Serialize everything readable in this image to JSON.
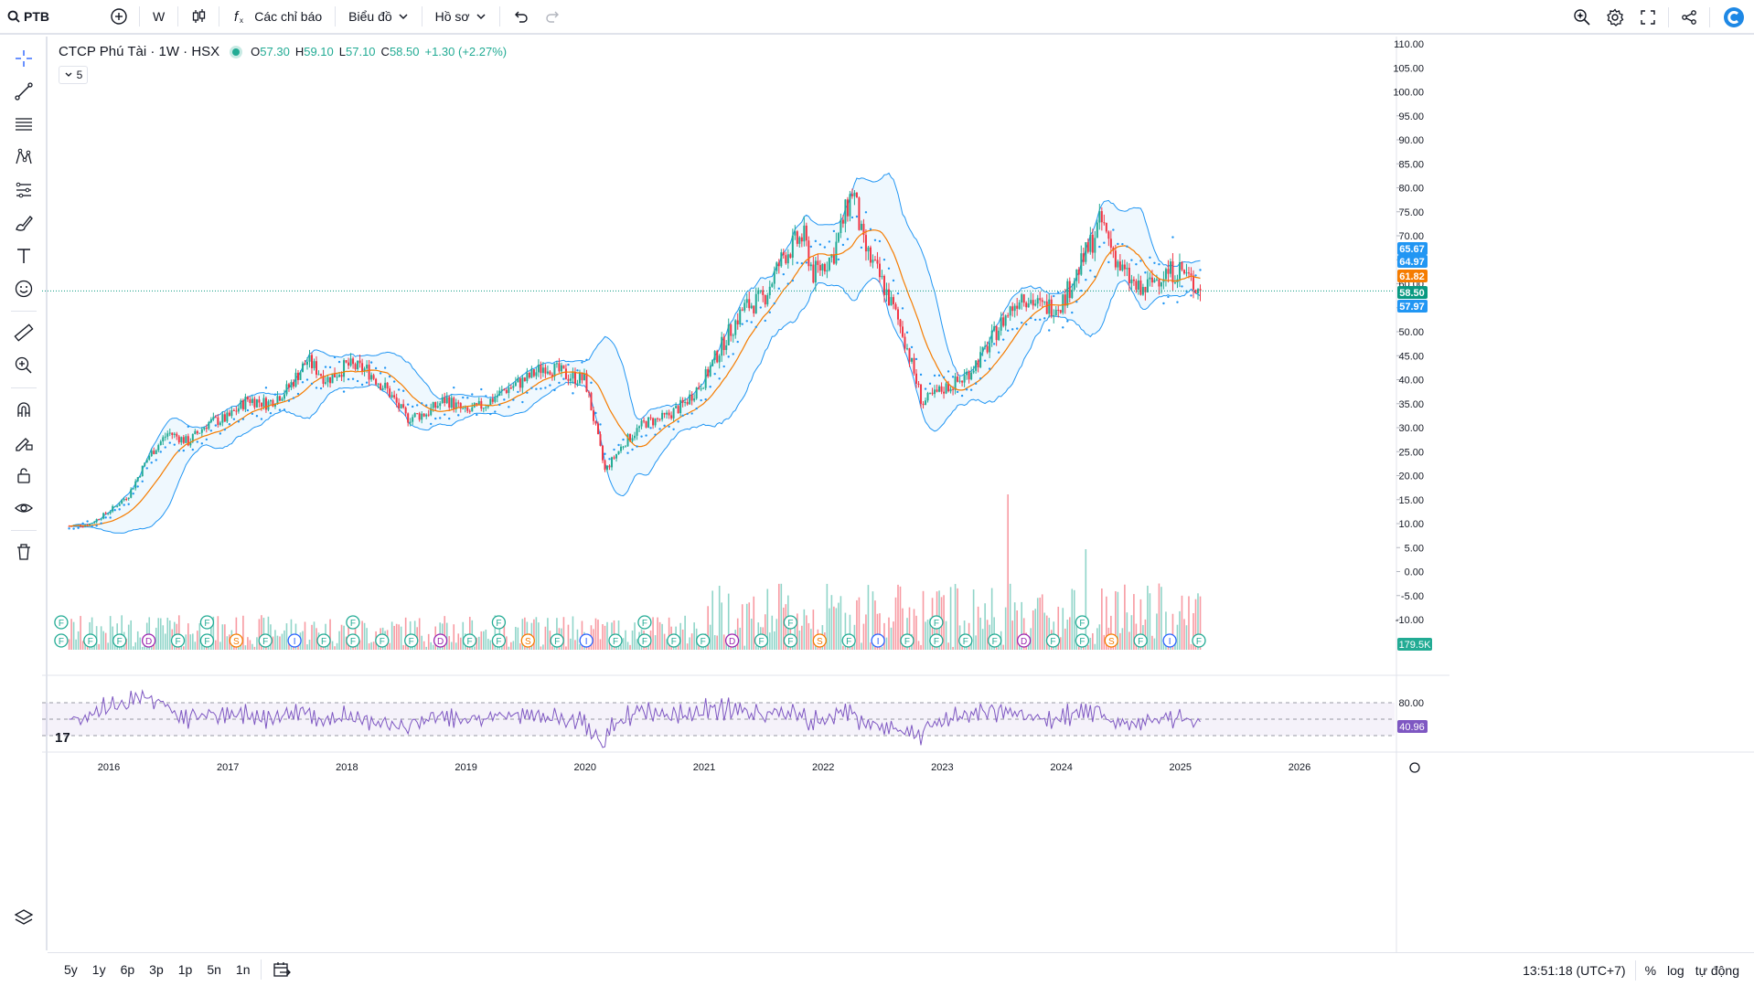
{
  "toolbar": {
    "symbol": "PTB",
    "interval": "W",
    "indicators_label": "Các chỉ báo",
    "chart_label": "Biểu đồ",
    "profile_label": "Hồ sơ"
  },
  "legend": {
    "title": "CTCP Phú Tài · 1W · HSX",
    "o_label": "O",
    "o": "57.30",
    "h_label": "H",
    "h": "59.10",
    "l_label": "L",
    "l": "57.10",
    "c_label": "C",
    "c": "58.50",
    "change": "+1.30 (+2.27%)",
    "collapse": "5"
  },
  "price_tags": [
    {
      "text": "65.67",
      "color": "#2196f3"
    },
    {
      "text": "64.97",
      "color": "#2196f3"
    },
    {
      "text": "61.82",
      "color": "#f57c00"
    },
    {
      "text": "58.50",
      "color": "#089981"
    },
    {
      "text": "57.97",
      "color": "#2196f3"
    }
  ],
  "volume_tag": "179.5K",
  "rsi_tag": "40.96",
  "bottom": {
    "ranges": [
      "5y",
      "1y",
      "6p",
      "3p",
      "1p",
      "5n",
      "1n"
    ],
    "time": "13:51:18 (UTC+7)",
    "percent": "%",
    "log": "log",
    "auto": "tự động"
  },
  "colors": {
    "up": "#22ab94",
    "down": "#f23645",
    "band": "#2196f3",
    "ma": "#f57c00",
    "rsi": "#7e57c2"
  },
  "chart_data": {
    "type": "candlestick",
    "y_axis_ticks": [
      "110.00",
      "105.00",
      "100.00",
      "95.00",
      "90.00",
      "85.00",
      "80.00",
      "75.00",
      "70.00",
      "65.00",
      "60.00",
      "55.00",
      "50.00",
      "45.00",
      "40.00",
      "35.00",
      "30.00",
      "25.00",
      "20.00",
      "15.00",
      "10.00",
      "5.00",
      "0.00",
      "-5.00",
      "-10.00"
    ],
    "x_axis_ticks": [
      "2016",
      "2017",
      "2018",
      "2019",
      "2020",
      "2021",
      "2022",
      "2023",
      "2024",
      "2025",
      "2026"
    ],
    "rsi_ticks": [
      "80.00"
    ],
    "price_path": [
      [
        "2015-09",
        9.5
      ],
      [
        "2015-11",
        9.8
      ],
      [
        "2016-01",
        12.5
      ],
      [
        "2016-03",
        16
      ],
      [
        "2016-05",
        24
      ],
      [
        "2016-07",
        29
      ],
      [
        "2016-09",
        27
      ],
      [
        "2016-11",
        31
      ],
      [
        "2017-01",
        32
      ],
      [
        "2017-03",
        36
      ],
      [
        "2017-05",
        35
      ],
      [
        "2017-07",
        38
      ],
      [
        "2017-09",
        44
      ],
      [
        "2017-11",
        40
      ],
      [
        "2018-01",
        43
      ],
      [
        "2018-03",
        42
      ],
      [
        "2018-05",
        38
      ],
      [
        "2018-07",
        32
      ],
      [
        "2018-09",
        33
      ],
      [
        "2018-11",
        36
      ],
      [
        "2019-01",
        33
      ],
      [
        "2019-03",
        35
      ],
      [
        "2019-05",
        38
      ],
      [
        "2019-07",
        40
      ],
      [
        "2019-09",
        43
      ],
      [
        "2019-11",
        41
      ],
      [
        "2020-01",
        40
      ],
      [
        "2020-03",
        21
      ],
      [
        "2020-05",
        27
      ],
      [
        "2020-07",
        31
      ],
      [
        "2020-09",
        32
      ],
      [
        "2020-11",
        35
      ],
      [
        "2021-01",
        40
      ],
      [
        "2021-03",
        48
      ],
      [
        "2021-05",
        55
      ],
      [
        "2021-07",
        57
      ],
      [
        "2021-09",
        66
      ],
      [
        "2021-11",
        70
      ],
      [
        "2021-12",
        62
      ],
      [
        "2022-02",
        66
      ],
      [
        "2022-04",
        80
      ],
      [
        "2022-05",
        68
      ],
      [
        "2022-07",
        60
      ],
      [
        "2022-09",
        50
      ],
      [
        "2022-11",
        35
      ],
      [
        "2023-01",
        38
      ],
      [
        "2023-03",
        40
      ],
      [
        "2023-05",
        45
      ],
      [
        "2023-07",
        52
      ],
      [
        "2023-09",
        58
      ],
      [
        "2023-11",
        55
      ],
      [
        "2024-01",
        56
      ],
      [
        "2024-03",
        64
      ],
      [
        "2024-05",
        73
      ],
      [
        "2024-07",
        63
      ],
      [
        "2024-09",
        58
      ],
      [
        "2024-11",
        62
      ],
      [
        "2025-01",
        63
      ],
      [
        "2025-03",
        58.5
      ]
    ],
    "last_close": 58.5
  }
}
